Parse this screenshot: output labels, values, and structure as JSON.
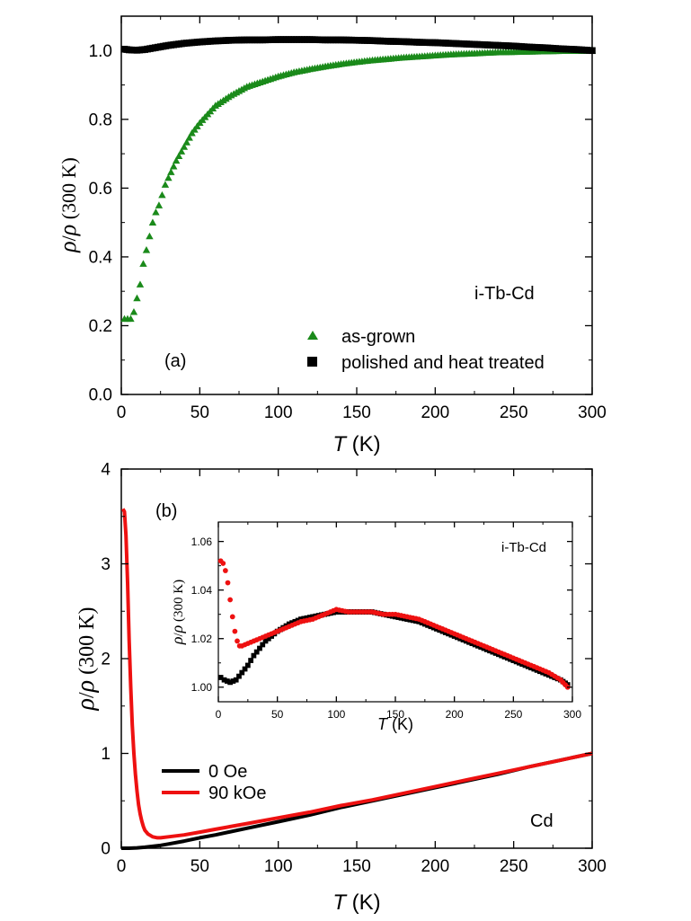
{
  "chart_data": [
    {
      "id": "panel-a",
      "type": "scatter",
      "panel_label": "(a)",
      "annotation": "i-Tb-Cd",
      "xlabel_italic": "T",
      "xlabel_unit": " (K)",
      "ylabel_rho": "ρ",
      "ylabel_slash": "/",
      "ylabel_rho2": "ρ",
      "ylabel_suffix": " (300 K)",
      "xlim": [
        0,
        300
      ],
      "ylim": [
        0.0,
        1.1
      ],
      "xticks": [
        0,
        50,
        100,
        150,
        200,
        250,
        300
      ],
      "xtick_labels": [
        "0",
        "50",
        "100",
        "150",
        "200",
        "250",
        "300"
      ],
      "yticks": [
        0.0,
        0.2,
        0.4,
        0.6,
        0.8,
        1.0
      ],
      "ytick_labels": [
        "0.0",
        "0.2",
        "0.4",
        "0.6",
        "0.8",
        "1.0"
      ],
      "legend_position": "bottom-right",
      "series": [
        {
          "name": "as-grown",
          "marker": "triangle",
          "color": "#1a8a1a",
          "x": [
            2,
            4,
            6,
            8,
            10,
            12,
            14,
            16,
            18,
            20,
            22,
            24,
            26,
            28,
            30,
            35,
            40,
            45,
            50,
            60,
            70,
            80,
            90,
            100,
            110,
            120,
            130,
            140,
            150,
            160,
            170,
            180,
            190,
            200,
            210,
            220,
            230,
            240,
            250,
            260,
            270,
            280,
            290,
            300
          ],
          "y": [
            0.22,
            0.22,
            0.22,
            0.24,
            0.28,
            0.32,
            0.38,
            0.42,
            0.46,
            0.5,
            0.53,
            0.55,
            0.58,
            0.61,
            0.63,
            0.68,
            0.72,
            0.76,
            0.79,
            0.84,
            0.87,
            0.895,
            0.91,
            0.925,
            0.937,
            0.946,
            0.954,
            0.961,
            0.967,
            0.972,
            0.976,
            0.98,
            0.983,
            0.986,
            0.989,
            0.991,
            0.993,
            0.995,
            0.996,
            0.997,
            0.998,
            0.999,
            0.999,
            1.0
          ]
        },
        {
          "name": "polished and heat treated",
          "marker": "square",
          "color": "#000000",
          "x": [
            2,
            5,
            10,
            15,
            20,
            25,
            30,
            40,
            50,
            60,
            70,
            80,
            90,
            100,
            110,
            120,
            130,
            140,
            150,
            160,
            170,
            180,
            190,
            200,
            210,
            220,
            230,
            240,
            250,
            260,
            270,
            280,
            290,
            300
          ],
          "y": [
            1.004,
            1.002,
            1.001,
            1.003,
            1.007,
            1.011,
            1.015,
            1.021,
            1.025,
            1.028,
            1.03,
            1.031,
            1.031,
            1.032,
            1.032,
            1.032,
            1.031,
            1.031,
            1.03,
            1.029,
            1.027,
            1.026,
            1.024,
            1.023,
            1.021,
            1.019,
            1.017,
            1.015,
            1.013,
            1.01,
            1.008,
            1.005,
            1.003,
            1.0
          ]
        }
      ]
    },
    {
      "id": "panel-b",
      "type": "line",
      "panel_label": "(b)",
      "annotation": "Cd",
      "xlabel_italic": "T",
      "xlabel_unit": " (K)",
      "ylabel_rho": "ρ",
      "ylabel_slash": "/",
      "ylabel_rho2": "ρ",
      "ylabel_suffix": " (300 K)",
      "xlim": [
        0,
        300
      ],
      "ylim": [
        0,
        4
      ],
      "xticks": [
        0,
        50,
        100,
        150,
        200,
        250,
        300
      ],
      "xtick_labels": [
        "0",
        "50",
        "100",
        "150",
        "200",
        "250",
        "300"
      ],
      "yticks": [
        0,
        1,
        2,
        3,
        4
      ],
      "ytick_labels": [
        "0",
        "1",
        "2",
        "3",
        "4"
      ],
      "legend_position": "bottom-left",
      "series": [
        {
          "name": "0 Oe",
          "color": "#000000",
          "x": [
            0,
            5,
            10,
            15,
            20,
            25,
            30,
            40,
            50,
            60,
            80,
            100,
            120,
            140,
            160,
            180,
            200,
            220,
            240,
            260,
            280,
            300
          ],
          "y": [
            0.0,
            0.0,
            0.004,
            0.01,
            0.02,
            0.03,
            0.045,
            0.075,
            0.11,
            0.14,
            0.21,
            0.28,
            0.35,
            0.43,
            0.5,
            0.57,
            0.64,
            0.71,
            0.78,
            0.86,
            0.93,
            1.0
          ]
        },
        {
          "name": "90 kOe",
          "color": "#ee1111",
          "x": [
            1,
            2,
            3,
            4,
            5,
            6,
            7,
            8,
            9,
            10,
            11,
            12,
            13,
            14,
            15,
            17,
            20,
            23,
            25,
            30,
            40,
            50,
            60,
            80,
            100,
            120,
            140,
            160,
            180,
            200,
            220,
            240,
            260,
            280,
            300
          ],
          "y": [
            3.58,
            3.55,
            3.3,
            2.8,
            2.2,
            1.7,
            1.3,
            1.0,
            0.78,
            0.6,
            0.46,
            0.36,
            0.29,
            0.23,
            0.19,
            0.15,
            0.12,
            0.11,
            0.11,
            0.12,
            0.14,
            0.17,
            0.2,
            0.26,
            0.32,
            0.38,
            0.45,
            0.51,
            0.58,
            0.65,
            0.72,
            0.79,
            0.86,
            0.93,
            1.0
          ]
        }
      ]
    },
    {
      "id": "panel-b-inset",
      "type": "scatter",
      "annotation": "i-Tb-Cd",
      "xlabel_italic": "T",
      "xlabel_unit": " (K)",
      "ylabel_rho": "ρ",
      "ylabel_slash": "/",
      "ylabel_rho2": "ρ",
      "ylabel_suffix": " (300 K)",
      "xlim": [
        0,
        300
      ],
      "ylim": [
        0.994,
        1.068
      ],
      "xticks": [
        0,
        50,
        100,
        150,
        200,
        250,
        300
      ],
      "xtick_labels": [
        "0",
        "50",
        "100",
        "150",
        "200",
        "250",
        "300"
      ],
      "yticks": [
        1.0,
        1.02,
        1.04,
        1.06
      ],
      "ytick_labels": [
        "1.00",
        "1.02",
        "1.04",
        "1.06"
      ],
      "series": [
        {
          "name": "0 Oe",
          "marker": "square",
          "color": "#000000",
          "x": [
            2,
            5,
            10,
            15,
            20,
            25,
            30,
            40,
            50,
            60,
            70,
            80,
            90,
            100,
            110,
            120,
            130,
            140,
            150,
            160,
            170,
            180,
            190,
            200,
            210,
            220,
            230,
            240,
            250,
            260,
            270,
            280,
            290,
            296
          ],
          "y": [
            1.004,
            1.003,
            1.002,
            1.003,
            1.006,
            1.009,
            1.013,
            1.019,
            1.023,
            1.026,
            1.028,
            1.029,
            1.03,
            1.031,
            1.031,
            1.031,
            1.031,
            1.03,
            1.029,
            1.028,
            1.027,
            1.025,
            1.023,
            1.021,
            1.019,
            1.017,
            1.015,
            1.013,
            1.011,
            1.009,
            1.007,
            1.005,
            1.003,
            1.001
          ]
        },
        {
          "name": "90 kOe",
          "marker": "circle",
          "color": "#ee1111",
          "x": [
            2,
            4,
            6,
            8,
            10,
            12,
            14,
            16,
            18,
            20,
            25,
            30,
            35,
            40,
            50,
            60,
            70,
            80,
            90,
            100,
            110,
            120,
            130,
            140,
            150,
            160,
            170,
            180,
            190,
            200,
            210,
            220,
            230,
            240,
            250,
            260,
            270,
            280,
            290,
            296
          ],
          "y": [
            1.052,
            1.051,
            1.048,
            1.043,
            1.036,
            1.029,
            1.023,
            1.019,
            1.017,
            1.017,
            1.018,
            1.019,
            1.02,
            1.021,
            1.023,
            1.025,
            1.027,
            1.028,
            1.03,
            1.032,
            1.031,
            1.031,
            1.031,
            1.03,
            1.03,
            1.029,
            1.028,
            1.026,
            1.024,
            1.022,
            1.02,
            1.018,
            1.016,
            1.014,
            1.012,
            1.01,
            1.008,
            1.006,
            1.003,
            1.0
          ]
        }
      ]
    }
  ]
}
